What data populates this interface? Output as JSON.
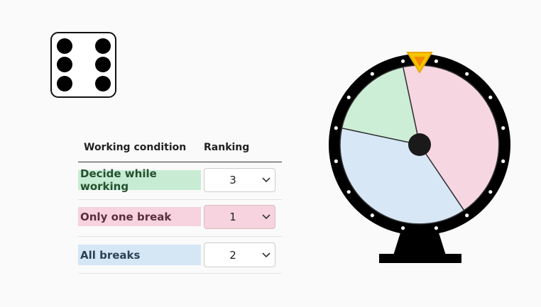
{
  "table": {
    "headers": [
      "Working condition",
      "Ranking"
    ],
    "rows": [
      {
        "condition": "Decide while working",
        "ranking": 3
      },
      {
        "condition": "Only one break",
        "ranking": 1
      },
      {
        "condition": "All breaks",
        "ranking": 2
      }
    ]
  }
}
